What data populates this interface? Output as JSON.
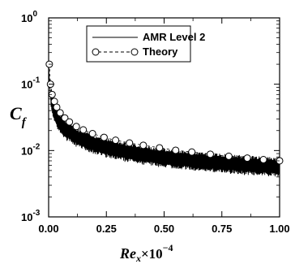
{
  "chart_data": {
    "type": "line",
    "xlabel": {
      "base": "Re",
      "sub": "x",
      "times": "×10",
      "exp": "−4"
    },
    "ylabel": {
      "base": "C",
      "sub": "f"
    },
    "xlim": [
      0,
      1
    ],
    "ylim": [
      0.001,
      1
    ],
    "y_scale": "log",
    "grid": false,
    "legend_position": "top-center",
    "x_ticks": [
      "0.00",
      "0.25",
      "0.50",
      "0.75",
      "1.00"
    ],
    "y_ticks": [
      {
        "value": 1,
        "base": "10",
        "exp": "0"
      },
      {
        "value": 0.1,
        "base": "10",
        "exp": "-1"
      },
      {
        "value": 0.01,
        "base": "10",
        "exp": "-2"
      },
      {
        "value": 0.001,
        "base": "10",
        "exp": "-3"
      }
    ],
    "series": [
      {
        "name": "AMR Level 2",
        "style": "noisy-line",
        "x": [
          0.0005,
          0.002,
          0.005,
          0.01,
          0.015,
          0.02,
          0.03,
          0.04,
          0.05,
          0.06,
          0.08,
          0.1,
          0.12,
          0.15,
          0.2,
          0.25,
          0.3,
          0.35,
          0.4,
          0.45,
          0.5,
          0.55,
          0.6,
          0.65,
          0.7,
          0.75,
          0.8,
          0.85,
          0.9,
          0.95,
          1.0
        ],
        "y": [
          0.2,
          0.14,
          0.09,
          0.06,
          0.05,
          0.042,
          0.034,
          0.029,
          0.026,
          0.023,
          0.02,
          0.018,
          0.016,
          0.0145,
          0.0125,
          0.0112,
          0.0102,
          0.0094,
          0.0088,
          0.0083,
          0.0079,
          0.0075,
          0.0072,
          0.0069,
          0.0067,
          0.0065,
          0.0063,
          0.0061,
          0.006,
          0.0058,
          0.0057
        ]
      },
      {
        "name": "Theory",
        "style": "dashed-circles",
        "x": [
          0.003,
          0.008,
          0.015,
          0.025,
          0.035,
          0.05,
          0.07,
          0.09,
          0.12,
          0.15,
          0.19,
          0.24,
          0.29,
          0.35,
          0.41,
          0.48,
          0.55,
          0.62,
          0.7,
          0.78,
          0.86,
          0.93,
          1.0
        ],
        "y": [
          0.2,
          0.1,
          0.07,
          0.055,
          0.045,
          0.037,
          0.031,
          0.027,
          0.023,
          0.0205,
          0.018,
          0.0158,
          0.0143,
          0.013,
          0.012,
          0.011,
          0.0101,
          0.0095,
          0.0088,
          0.0082,
          0.0077,
          0.0073,
          0.007
        ]
      }
    ]
  }
}
